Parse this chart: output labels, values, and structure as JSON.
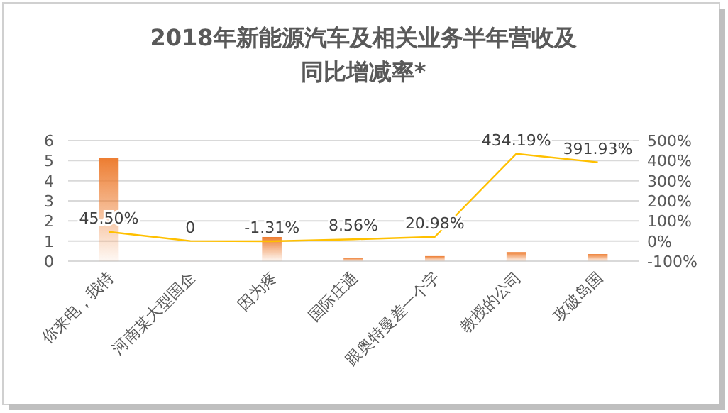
{
  "chart_data": {
    "type": "bar",
    "title": "2018年新能源汽车及相关业务半年营收及同比增减率*",
    "categories": [
      "你来电，我特",
      "河南某大型国企",
      "因为疼",
      "国际庄通",
      "跟奥特曼差一个字",
      "教授的公司",
      "攻破岛国"
    ],
    "series": [
      {
        "color": "#ed7d31",
        "values": [
          5.15,
          0,
          1.2,
          0.15,
          0.25,
          0.45,
          0.35
        ]
      },
      {
        "type": "line",
        "axis": "y2",
        "color": "#ffc000",
        "values": [
          45.5,
          0,
          -1.31,
          8.56,
          20.98,
          434.19,
          391.93
        ],
        "value_labels": [
          "45.50%",
          "0",
          "-1.31%",
          "8.56%",
          "20.98%",
          "434.19%",
          "391.93%"
        ]
      }
    ],
    "ylim": [
      0,
      6
    ],
    "yticks": [
      0,
      1,
      2,
      3,
      4,
      5,
      6
    ],
    "y2lim": [
      -100,
      500
    ],
    "y2ticks": [
      {
        "value": 500,
        "label": "500%"
      },
      {
        "value": 400,
        "label": "400%"
      },
      {
        "value": 300,
        "label": "300%"
      },
      {
        "value": 200,
        "label": "200%"
      },
      {
        "value": 100,
        "label": "100%"
      },
      {
        "value": 0,
        "label": "0%"
      },
      {
        "value": -100,
        "label": "-100%"
      }
    ],
    "grid": "y"
  }
}
